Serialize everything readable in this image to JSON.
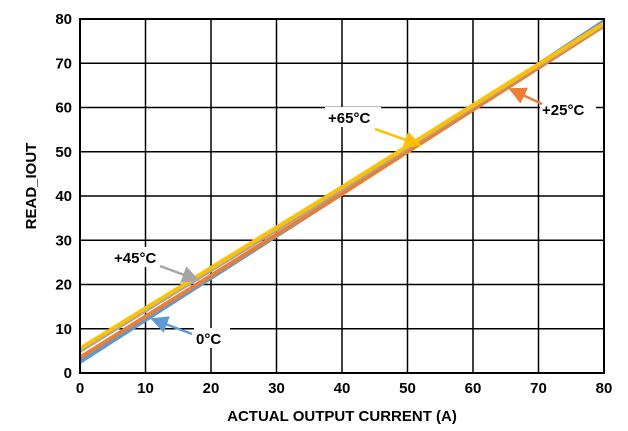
{
  "chart_data": {
    "type": "line",
    "title": "",
    "xlabel": "ACTUAL OUTPUT CURRENT (A)",
    "ylabel": "READ_IOUT",
    "xlim": [
      0,
      80
    ],
    "ylim": [
      0,
      80
    ],
    "xticks": [
      "0",
      "10",
      "20",
      "30",
      "40",
      "50",
      "60",
      "70",
      "80"
    ],
    "yticks": [
      "0",
      "10",
      "20",
      "30",
      "40",
      "50",
      "60",
      "70",
      "80"
    ],
    "grid": true,
    "legend": "none",
    "series": [
      {
        "name": "0°C",
        "color": "#5b9bd5",
        "x": [
          0,
          40,
          80
        ],
        "y": [
          2.5,
          40.5,
          79.5
        ]
      },
      {
        "name": "+25°C",
        "color": "#ed7d31",
        "x": [
          0,
          40,
          80
        ],
        "y": [
          3.5,
          40.5,
          78.5
        ]
      },
      {
        "name": "+45°C",
        "color": "#a5a5a5",
        "x": [
          0,
          40,
          80
        ],
        "y": [
          5.0,
          41.5,
          78.8
        ]
      },
      {
        "name": "+65°C",
        "color": "#ffc000",
        "x": [
          0,
          40,
          80
        ],
        "y": [
          5.5,
          42.0,
          79.0
        ]
      }
    ],
    "annotations": [
      {
        "text": "+65°C",
        "series": "+65°C"
      },
      {
        "text": "+25°C",
        "series": "+25°C"
      },
      {
        "text": "+45°C",
        "series": "+45°C"
      },
      {
        "text": "0°C",
        "series": "0°C"
      }
    ]
  }
}
